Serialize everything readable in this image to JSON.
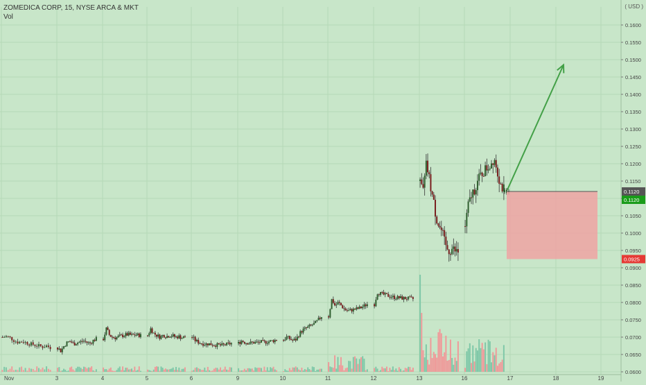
{
  "legend": {
    "symbol_line": "ZOMEDICA CORP, 15, NYSE ARCA & MKT",
    "volume_label": "Vol"
  },
  "axis_unit": "( USD )",
  "chart_data": {
    "type": "candlestick",
    "title": "ZOMEDICA CORP, 15, NYSE ARCA & MKT",
    "interval": "15",
    "exchange": "NYSE ARCA & MKT",
    "ylim": [
      0.06,
      0.165
    ],
    "y_ticks": [
      "0.0600",
      "0.0650",
      "0.0700",
      "0.0750",
      "0.0800",
      "0.0850",
      "0.0900",
      "0.0950",
      "0.1000",
      "0.1050",
      "0.1100",
      "0.1150",
      "0.1200",
      "0.1250",
      "0.1300",
      "0.1350",
      "0.1400",
      "0.1450",
      "0.1500",
      "0.1550",
      "0.1600"
    ],
    "x_ticks": [
      "Nov",
      "3",
      "4",
      "5",
      "6",
      "9",
      "10",
      "11",
      "12",
      "13",
      "16",
      "17",
      "18",
      "19"
    ],
    "price_labels": [
      {
        "text": "0.1120",
        "value": 0.112,
        "color": "#555555"
      },
      {
        "text": "0.1120",
        "value": 0.112,
        "color": "#1a9c1a"
      },
      {
        "text": "0.0925",
        "value": 0.0925,
        "color": "#e53935"
      }
    ],
    "series": [
      {
        "day": "Nov",
        "close_path": [
          0.07,
          0.0702,
          0.0698,
          0.069,
          0.0685,
          0.0688,
          0.0684,
          0.068,
          0.0678,
          0.0675,
          0.0672,
          0.0675,
          0.067
        ]
      },
      {
        "day": "3",
        "close_path": [
          0.067,
          0.066,
          0.0675,
          0.0685,
          0.0688,
          0.068,
          0.0684,
          0.0686,
          0.069,
          0.0685,
          0.0682,
          0.069,
          0.0695
        ]
      },
      {
        "day": "4",
        "close_path": [
          0.0695,
          0.0725,
          0.0705,
          0.07,
          0.0698,
          0.0702,
          0.0704,
          0.0706,
          0.0708,
          0.0705,
          0.0707,
          0.0706,
          0.0705
        ]
      },
      {
        "day": "5",
        "close_path": [
          0.0705,
          0.0725,
          0.071,
          0.0705,
          0.07,
          0.0706,
          0.0702,
          0.0705,
          0.0704,
          0.07,
          0.0702,
          0.0698,
          0.07
        ]
      },
      {
        "day": "6",
        "close_path": [
          0.07,
          0.069,
          0.0685,
          0.0682,
          0.068,
          0.0681,
          0.0679,
          0.0678,
          0.0677,
          0.0676,
          0.0678,
          0.068,
          0.0682
        ]
      },
      {
        "day": "9",
        "close_path": [
          0.0682,
          0.069,
          0.0685,
          0.0684,
          0.0683,
          0.0685,
          0.0684,
          0.0686,
          0.0685,
          0.0687,
          0.0688,
          0.069,
          0.0692
        ]
      },
      {
        "day": "10",
        "close_path": [
          0.0692,
          0.07,
          0.0695,
          0.069,
          0.0694,
          0.071,
          0.072,
          0.0725,
          0.073,
          0.0735,
          0.074,
          0.075,
          0.076
        ]
      },
      {
        "day": "11",
        "close_path": [
          0.076,
          0.081,
          0.079,
          0.08,
          0.079,
          0.078,
          0.0775,
          0.0778,
          0.078,
          0.0782,
          0.0785,
          0.079,
          0.0795
        ]
      },
      {
        "day": "12",
        "close_path": [
          0.0795,
          0.083,
          0.0825,
          0.0822,
          0.082,
          0.0818,
          0.0815,
          0.0814,
          0.0813,
          0.0812,
          0.0812,
          0.0811,
          0.081
        ]
      },
      {
        "day": "13",
        "close_path": [
          0.115,
          0.112,
          0.12,
          0.115,
          0.11,
          0.105,
          0.102,
          0.1,
          0.096,
          0.095,
          0.0955,
          0.0948,
          0.0945
        ]
      },
      {
        "day": "16",
        "close_path": [
          0.102,
          0.108,
          0.111,
          0.113,
          0.115,
          0.117,
          0.118,
          0.119,
          0.12,
          0.122,
          0.118,
          0.114,
          0.1125
        ]
      },
      {
        "day": "17",
        "close_path": [
          0.112
        ]
      }
    ],
    "volume_note": "relative volume heights per day segment",
    "annotations": [
      {
        "type": "arrow",
        "from": {
          "day": 17,
          "price": 0.1125
        },
        "to": {
          "day": 18.2,
          "price": 0.1485
        },
        "color": "#43a047"
      },
      {
        "type": "stop-box",
        "x_from": {
          "day": 17
        },
        "x_to": {
          "day": 19
        },
        "y_from": 0.112,
        "y_to": 0.0925,
        "color": "#efa3a3"
      }
    ],
    "grid": true
  }
}
